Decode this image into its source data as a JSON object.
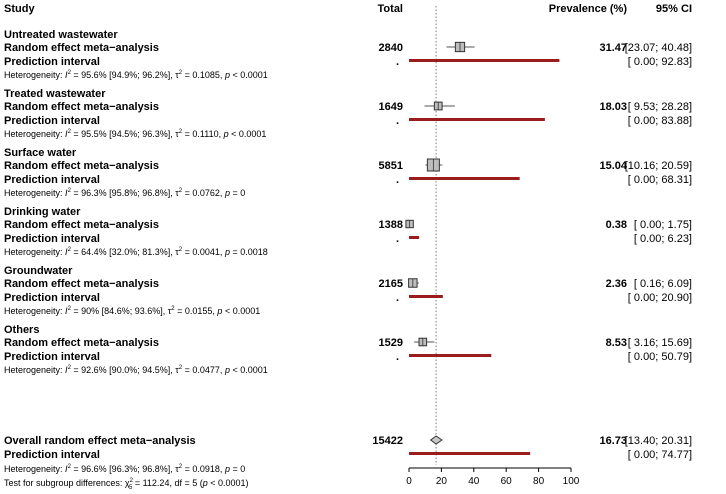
{
  "chart_data": {
    "type": "forest",
    "columns": {
      "study": "Study",
      "total": "Total",
      "prevalence": "Prevalence (%)",
      "ci": "95% CI"
    },
    "xaxis": {
      "range": [
        0,
        100
      ],
      "ticks": [
        0,
        20,
        40,
        60,
        80,
        100
      ]
    },
    "reference_line": 16.73,
    "groups": [
      {
        "name": "Untreated wastewater",
        "re_label": "Random effect meta−analysis",
        "pi_label": "Prediction interval",
        "total": "2840",
        "est": 31.47,
        "lo": 23.07,
        "hi": 40.48,
        "est_text": "31.47",
        "ci_text": "[23.07; 40.48]",
        "pi_dot": ".",
        "pi_lo": 0.0,
        "pi_hi": 92.83,
        "pi_text": "[ 0.00; 92.83]",
        "het_i2": "95.6% [94.9%; 96.2%]",
        "het_tau2": "0.1085",
        "het_p": "< 0.0001"
      },
      {
        "name": "Treated wastewater",
        "re_label": "Random effect meta−analysis",
        "pi_label": "Prediction interval",
        "total": "1649",
        "est": 18.03,
        "lo": 9.53,
        "hi": 28.28,
        "est_text": "18.03",
        "ci_text": "[ 9.53; 28.28]",
        "pi_dot": ".",
        "pi_lo": 0.0,
        "pi_hi": 83.88,
        "pi_text": "[ 0.00; 83.88]",
        "het_i2": "95.5% [94.5%; 96.3%]",
        "het_tau2": "0.1110",
        "het_p": "< 0.0001"
      },
      {
        "name": "Surface water",
        "re_label": "Random effect meta−analysis",
        "pi_label": "Prediction interval",
        "total": "5851",
        "est": 15.04,
        "lo": 10.16,
        "hi": 20.59,
        "est_text": "15.04",
        "ci_text": "[10.16; 20.59]",
        "pi_dot": ".",
        "pi_lo": 0.0,
        "pi_hi": 68.31,
        "pi_text": "[ 0.00; 68.31]",
        "het_i2": "96.3% [95.8%; 96.8%]",
        "het_tau2": "0.0762",
        "het_p": "= 0"
      },
      {
        "name": "Drinking water",
        "re_label": "Random effect meta−analysis",
        "pi_label": "Prediction interval",
        "total": "1388",
        "est": 0.38,
        "lo": 0.0,
        "hi": 1.75,
        "est_text": "0.38",
        "ci_text": "[ 0.00;  1.75]",
        "pi_dot": ".",
        "pi_lo": 0.0,
        "pi_hi": 6.23,
        "pi_text": "[ 0.00;  6.23]",
        "het_i2": "64.4% [32.0%; 81.3%]",
        "het_tau2": "0.0041",
        "het_p": "= 0.0018"
      },
      {
        "name": "Groundwater",
        "re_label": "Random effect meta−analysis",
        "pi_label": "Prediction interval",
        "total": "2165",
        "est": 2.36,
        "lo": 0.16,
        "hi": 6.09,
        "est_text": "2.36",
        "ci_text": "[ 0.16;  6.09]",
        "pi_dot": ".",
        "pi_lo": 0.0,
        "pi_hi": 20.9,
        "pi_text": "[ 0.00; 20.90]",
        "het_i2": "90% [84.6%; 93.6%]",
        "het_tau2": "0.0155",
        "het_p": "< 0.0001"
      },
      {
        "name": "Others",
        "re_label": "Random effect meta−analysis",
        "pi_label": "Prediction interval",
        "total": "1529",
        "est": 8.53,
        "lo": 3.16,
        "hi": 15.69,
        "est_text": "8.53",
        "ci_text": "[ 3.16; 15.69]",
        "pi_dot": ".",
        "pi_lo": 0.0,
        "pi_hi": 50.79,
        "pi_text": "[ 0.00; 50.79]",
        "het_i2": "92.6% [90.0%; 94.5%]",
        "het_tau2": "0.0477",
        "het_p": "< 0.0001"
      }
    ],
    "overall": {
      "name": "Overall random effect meta−analysis",
      "pi_label": "Prediction interval",
      "total": "15422",
      "est": 16.73,
      "lo": 13.4,
      "hi": 20.31,
      "est_text": "16.73",
      "ci_text": "[13.40; 20.31]",
      "pi_lo": 0.0,
      "pi_hi": 74.77,
      "pi_text": "[ 0.00; 74.77]",
      "het_i2": "96.6% [96.3%; 96.8%]",
      "het_tau2": "0.0918",
      "het_p": "= 0",
      "subgroup_prefix": "Test for subgroup differences: ",
      "subgroup_stat": " = 112.24, df = 5 (",
      "subgroup_p": "< 0.0001",
      "subgroup_suffix": ")"
    },
    "labels": {
      "het_prefix": "Heterogeneity: ",
      "i2": "I",
      "tau": "τ",
      "p": "p",
      "chi": "χ",
      "chi_sub": "5"
    },
    "colors": {
      "prediction_interval": "#9b1c1c",
      "box_fill": "#bdbdbd",
      "diamond_fill": "#c8c8c8",
      "reference_line": "#808080"
    }
  }
}
